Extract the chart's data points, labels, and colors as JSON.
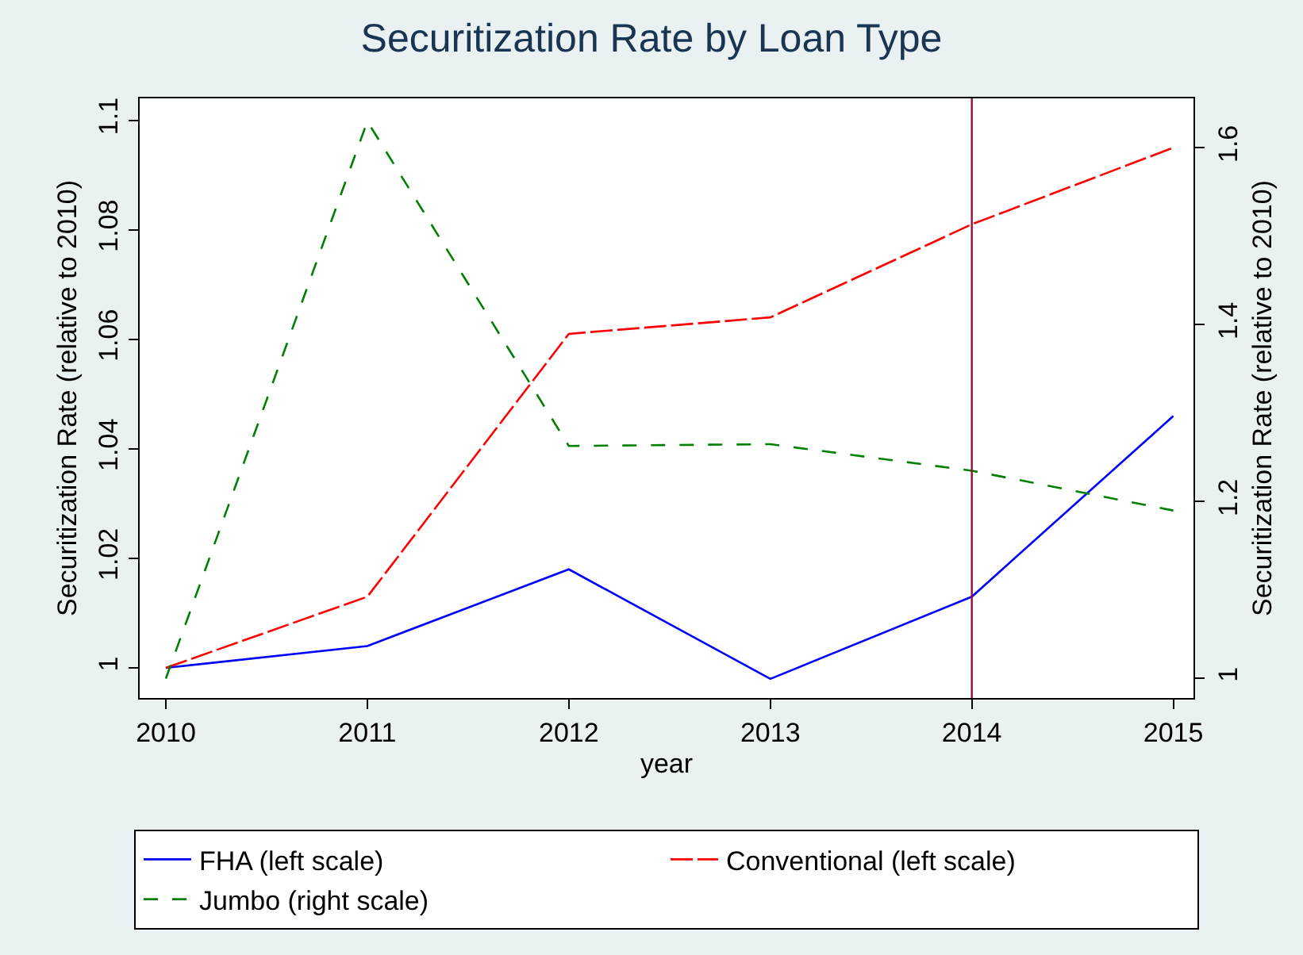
{
  "chart_data": {
    "type": "line",
    "title": "Securitization Rate by Loan Type",
    "xlabel": "year",
    "ylabel": "Securitization Rate (relative to 2010)",
    "y2label": "Securitization Rate (relative to 2010)",
    "x": [
      2010,
      2011,
      2012,
      2013,
      2014,
      2015
    ],
    "xlim": [
      2009.87,
      2015.1
    ],
    "xticks": [
      2010,
      2011,
      2012,
      2013,
      2014,
      2015
    ],
    "ylim": [
      0.9945,
      1.104
    ],
    "yticks": [
      1,
      1.02,
      1.04,
      1.06,
      1.08,
      1.1
    ],
    "y2lim": [
      0.978,
      1.656
    ],
    "y2ticks": [
      1,
      1.2,
      1.4,
      1.6
    ],
    "series": [
      {
        "name": "FHA (left scale)",
        "color": "#0000ff",
        "line_style": "solid",
        "values": [
          1.0,
          1.004,
          1.018,
          0.998,
          1.013,
          1.046
        ]
      },
      {
        "name": "Conventional (left scale)",
        "color": "#ff0000",
        "line_style": "dashed",
        "values": [
          1.0,
          1.013,
          1.061,
          1.064,
          1.081,
          1.095
        ]
      },
      {
        "name": "Jumbo (right scale)",
        "color": "#008000",
        "line_style": "dashed",
        "axis": "y2",
        "values": [
          1.0,
          1.63,
          1.263,
          1.265,
          1.235,
          1.19
        ]
      }
    ],
    "ref_lines": [
      {
        "axis": "x",
        "value": 2014,
        "color": "#90103c"
      }
    ],
    "grid": false,
    "legend": "bottom",
    "marker": "none"
  }
}
